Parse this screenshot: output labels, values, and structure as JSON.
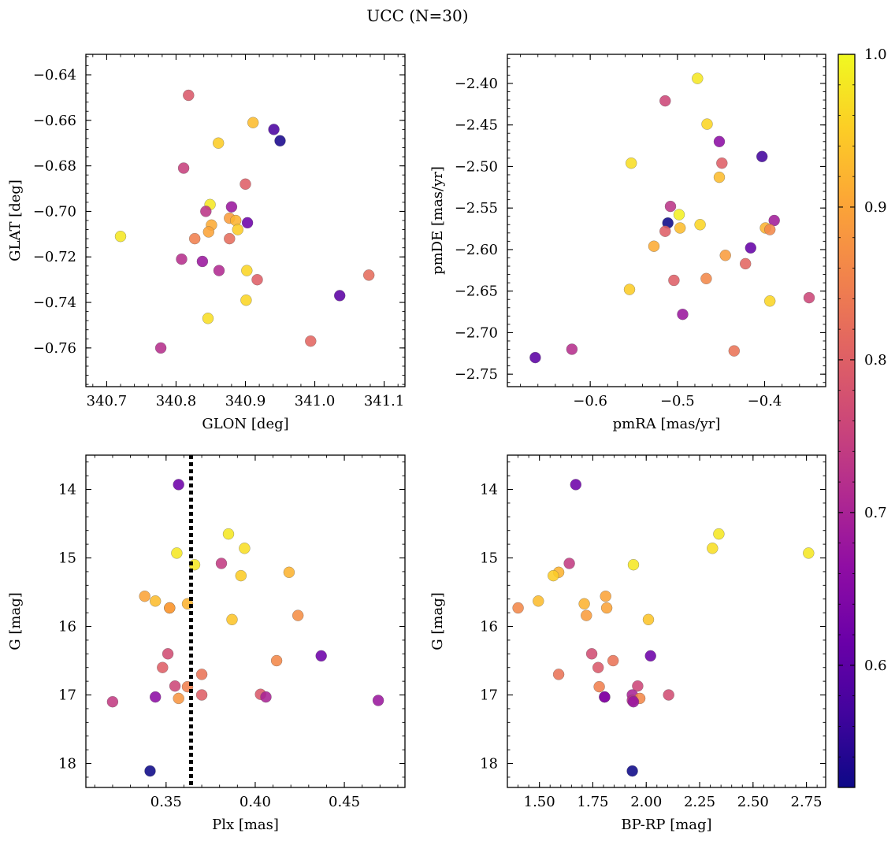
{
  "figure": {
    "title": "UCC (N=30)"
  },
  "colorbar": {
    "colormap": "plasma",
    "vmin": 0.52,
    "vmax": 1.0,
    "ticks": [
      1.0,
      0.9,
      0.8,
      0.7,
      0.6
    ],
    "tick_labels": [
      "1.0",
      "0.9",
      "0.8",
      "0.7",
      "0.6"
    ]
  },
  "chart_data": [
    {
      "type": "scatter",
      "title": "",
      "xlabel": "GLON [deg]",
      "ylabel": "GLAT [deg]",
      "xlim": [
        340.67,
        341.13
      ],
      "ylim": [
        -0.777,
        -0.631
      ],
      "y_inverted": false,
      "x_ticks": [
        340.7,
        340.8,
        340.9,
        341.0,
        341.1
      ],
      "x_tick_labels": [
        "340.7",
        "340.8",
        "340.9",
        "341.0",
        "341.1"
      ],
      "y_ticks": [
        -0.64,
        -0.66,
        -0.68,
        -0.7,
        -0.72,
        -0.74,
        -0.76
      ],
      "y_tick_labels": [
        "−0.64",
        "−0.66",
        "−0.68",
        "−0.70",
        "−0.72",
        "−0.74",
        "−0.76"
      ],
      "points": [
        {
          "x": 340.818,
          "y": -0.649,
          "c": 0.79
        },
        {
          "x": 340.911,
          "y": -0.661,
          "c": 0.93
        },
        {
          "x": 340.941,
          "y": -0.664,
          "c": 0.58
        },
        {
          "x": 340.95,
          "y": -0.669,
          "c": 0.53
        },
        {
          "x": 340.861,
          "y": -0.67,
          "c": 0.95
        },
        {
          "x": 340.811,
          "y": -0.681,
          "c": 0.75
        },
        {
          "x": 340.9,
          "y": -0.688,
          "c": 0.8
        },
        {
          "x": 340.849,
          "y": -0.697,
          "c": 0.98
        },
        {
          "x": 340.88,
          "y": -0.698,
          "c": 0.68
        },
        {
          "x": 340.843,
          "y": -0.7,
          "c": 0.73
        },
        {
          "x": 340.877,
          "y": -0.703,
          "c": 0.89
        },
        {
          "x": 340.886,
          "y": -0.704,
          "c": 0.92
        },
        {
          "x": 340.903,
          "y": -0.705,
          "c": 0.62
        },
        {
          "x": 340.851,
          "y": -0.706,
          "c": 0.91
        },
        {
          "x": 340.889,
          "y": -0.708,
          "c": 0.95
        },
        {
          "x": 340.847,
          "y": -0.709,
          "c": 0.9
        },
        {
          "x": 340.72,
          "y": -0.711,
          "c": 0.98
        },
        {
          "x": 340.827,
          "y": -0.712,
          "c": 0.85
        },
        {
          "x": 340.877,
          "y": -0.712,
          "c": 0.82
        },
        {
          "x": 340.808,
          "y": -0.721,
          "c": 0.72
        },
        {
          "x": 340.838,
          "y": -0.722,
          "c": 0.68
        },
        {
          "x": 340.862,
          "y": -0.726,
          "c": 0.71
        },
        {
          "x": 340.902,
          "y": -0.726,
          "c": 0.96
        },
        {
          "x": 340.917,
          "y": -0.73,
          "c": 0.8
        },
        {
          "x": 341.078,
          "y": -0.728,
          "c": 0.82
        },
        {
          "x": 341.036,
          "y": -0.737,
          "c": 0.6
        },
        {
          "x": 340.901,
          "y": -0.739,
          "c": 0.96
        },
        {
          "x": 340.846,
          "y": -0.747,
          "c": 0.97
        },
        {
          "x": 340.994,
          "y": -0.757,
          "c": 0.81
        },
        {
          "x": 340.778,
          "y": -0.76,
          "c": 0.72
        }
      ]
    },
    {
      "type": "scatter",
      "title": "",
      "xlabel": "pmRA [mas/yr]",
      "ylabel": "pmDE [mas/yr]",
      "xlim": [
        -0.695,
        -0.33
      ],
      "ylim": [
        -2.765,
        -2.365
      ],
      "y_inverted": false,
      "x_ticks": [
        -0.6,
        -0.5,
        -0.4
      ],
      "x_tick_labels": [
        "−0.6",
        "−0.5",
        "−0.4"
      ],
      "y_ticks": [
        -2.4,
        -2.45,
        -2.5,
        -2.55,
        -2.6,
        -2.65,
        -2.7,
        -2.75
      ],
      "y_tick_labels": [
        "−2.40",
        "−2.45",
        "−2.50",
        "−2.55",
        "−2.60",
        "−2.65",
        "−2.70",
        "−2.75"
      ],
      "points": [
        {
          "x": -0.477,
          "y": -2.394,
          "c": 0.98
        },
        {
          "x": -0.514,
          "y": -2.421,
          "c": 0.76
        },
        {
          "x": -0.466,
          "y": -2.449,
          "c": 0.96
        },
        {
          "x": -0.452,
          "y": -2.47,
          "c": 0.66
        },
        {
          "x": -0.403,
          "y": -2.488,
          "c": 0.57
        },
        {
          "x": -0.553,
          "y": -2.496,
          "c": 0.97
        },
        {
          "x": -0.449,
          "y": -2.496,
          "c": 0.8
        },
        {
          "x": -0.452,
          "y": -2.513,
          "c": 0.93
        },
        {
          "x": -0.508,
          "y": -2.548,
          "c": 0.73
        },
        {
          "x": -0.498,
          "y": -2.558,
          "c": 0.99
        },
        {
          "x": -0.389,
          "y": -2.565,
          "c": 0.69
        },
        {
          "x": -0.511,
          "y": -2.568,
          "c": 0.52
        },
        {
          "x": -0.474,
          "y": -2.57,
          "c": 0.96
        },
        {
          "x": -0.497,
          "y": -2.574,
          "c": 0.93
        },
        {
          "x": -0.399,
          "y": -2.574,
          "c": 0.92
        },
        {
          "x": -0.394,
          "y": -2.576,
          "c": 0.86
        },
        {
          "x": -0.514,
          "y": -2.578,
          "c": 0.8
        },
        {
          "x": -0.527,
          "y": -2.596,
          "c": 0.91
        },
        {
          "x": -0.416,
          "y": -2.598,
          "c": 0.61
        },
        {
          "x": -0.445,
          "y": -2.607,
          "c": 0.89
        },
        {
          "x": -0.422,
          "y": -2.617,
          "c": 0.81
        },
        {
          "x": -0.467,
          "y": -2.635,
          "c": 0.86
        },
        {
          "x": -0.504,
          "y": -2.637,
          "c": 0.8
        },
        {
          "x": -0.555,
          "y": -2.648,
          "c": 0.95
        },
        {
          "x": -0.349,
          "y": -2.658,
          "c": 0.76
        },
        {
          "x": -0.394,
          "y": -2.662,
          "c": 0.96
        },
        {
          "x": -0.494,
          "y": -2.678,
          "c": 0.68
        },
        {
          "x": -0.621,
          "y": -2.72,
          "c": 0.72
        },
        {
          "x": -0.435,
          "y": -2.722,
          "c": 0.83
        },
        {
          "x": -0.663,
          "y": -2.73,
          "c": 0.6
        }
      ]
    },
    {
      "type": "scatter",
      "title": "",
      "xlabel": "Plx [mas]",
      "ylabel": "G [mag]",
      "xlim": [
        0.305,
        0.484
      ],
      "ylim": [
        13.5,
        18.35
      ],
      "y_inverted": true,
      "x_ticks": [
        0.35,
        0.4,
        0.45
      ],
      "x_tick_labels": [
        "0.35",
        "0.40",
        "0.45"
      ],
      "y_ticks": [
        14,
        15,
        16,
        17,
        18
      ],
      "y_tick_labels": [
        "14",
        "15",
        "16",
        "17",
        "18"
      ],
      "vline": {
        "x": 0.364,
        "style": "dotted"
      },
      "points": [
        {
          "x": 0.357,
          "y": 13.93,
          "c": 0.62
        },
        {
          "x": 0.385,
          "y": 14.65,
          "c": 0.98
        },
        {
          "x": 0.394,
          "y": 14.86,
          "c": 0.97
        },
        {
          "x": 0.356,
          "y": 14.93,
          "c": 0.98
        },
        {
          "x": 0.366,
          "y": 15.1,
          "c": 0.98
        },
        {
          "x": 0.381,
          "y": 15.08,
          "c": 0.74
        },
        {
          "x": 0.392,
          "y": 15.26,
          "c": 0.95
        },
        {
          "x": 0.419,
          "y": 15.21,
          "c": 0.92
        },
        {
          "x": 0.338,
          "y": 15.56,
          "c": 0.9
        },
        {
          "x": 0.344,
          "y": 15.63,
          "c": 0.93
        },
        {
          "x": 0.352,
          "y": 15.73,
          "c": 0.9
        },
        {
          "x": 0.352,
          "y": 15.73,
          "c": 0.89
        },
        {
          "x": 0.362,
          "y": 15.67,
          "c": 0.92
        },
        {
          "x": 0.387,
          "y": 15.9,
          "c": 0.94
        },
        {
          "x": 0.424,
          "y": 15.84,
          "c": 0.87
        },
        {
          "x": 0.351,
          "y": 16.4,
          "c": 0.77
        },
        {
          "x": 0.348,
          "y": 16.6,
          "c": 0.8
        },
        {
          "x": 0.37,
          "y": 16.7,
          "c": 0.83
        },
        {
          "x": 0.412,
          "y": 16.5,
          "c": 0.86
        },
        {
          "x": 0.437,
          "y": 16.43,
          "c": 0.62
        },
        {
          "x": 0.355,
          "y": 16.87,
          "c": 0.76
        },
        {
          "x": 0.362,
          "y": 16.88,
          "c": 0.85
        },
        {
          "x": 0.37,
          "y": 17.0,
          "c": 0.8
        },
        {
          "x": 0.344,
          "y": 17.03,
          "c": 0.66
        },
        {
          "x": 0.357,
          "y": 17.05,
          "c": 0.88
        },
        {
          "x": 0.403,
          "y": 16.99,
          "c": 0.79
        },
        {
          "x": 0.406,
          "y": 17.03,
          "c": 0.7
        },
        {
          "x": 0.469,
          "y": 17.08,
          "c": 0.68
        },
        {
          "x": 0.32,
          "y": 17.1,
          "c": 0.74
        },
        {
          "x": 0.341,
          "y": 18.11,
          "c": 0.52
        }
      ]
    },
    {
      "type": "scatter",
      "title": "",
      "xlabel": "BP-RP [mag]",
      "ylabel": "G [mag]",
      "xlim": [
        1.35,
        2.84
      ],
      "ylim": [
        13.5,
        18.35
      ],
      "y_inverted": true,
      "x_ticks": [
        1.5,
        1.75,
        2.0,
        2.25,
        2.5,
        2.75
      ],
      "x_tick_labels": [
        "1.50",
        "1.75",
        "2.00",
        "2.25",
        "2.50",
        "2.75"
      ],
      "y_ticks": [
        14,
        15,
        16,
        17,
        18
      ],
      "y_tick_labels": [
        "14",
        "15",
        "16",
        "17",
        "18"
      ],
      "points": [
        {
          "x": 1.67,
          "y": 13.93,
          "c": 0.62
        },
        {
          "x": 2.34,
          "y": 14.65,
          "c": 0.98
        },
        {
          "x": 2.31,
          "y": 14.86,
          "c": 0.97
        },
        {
          "x": 2.76,
          "y": 14.93,
          "c": 0.98
        },
        {
          "x": 1.64,
          "y": 15.08,
          "c": 0.74
        },
        {
          "x": 1.94,
          "y": 15.1,
          "c": 0.98
        },
        {
          "x": 1.59,
          "y": 15.21,
          "c": 0.92
        },
        {
          "x": 1.565,
          "y": 15.26,
          "c": 0.95
        },
        {
          "x": 1.81,
          "y": 15.56,
          "c": 0.9
        },
        {
          "x": 1.495,
          "y": 15.63,
          "c": 0.93
        },
        {
          "x": 1.71,
          "y": 15.67,
          "c": 0.92
        },
        {
          "x": 1.815,
          "y": 15.73,
          "c": 0.9
        },
        {
          "x": 1.4,
          "y": 15.73,
          "c": 0.86
        },
        {
          "x": 1.72,
          "y": 15.84,
          "c": 0.89
        },
        {
          "x": 2.01,
          "y": 15.9,
          "c": 0.94
        },
        {
          "x": 1.745,
          "y": 16.4,
          "c": 0.77
        },
        {
          "x": 2.02,
          "y": 16.43,
          "c": 0.62
        },
        {
          "x": 1.845,
          "y": 16.5,
          "c": 0.83
        },
        {
          "x": 1.775,
          "y": 16.6,
          "c": 0.79
        },
        {
          "x": 1.59,
          "y": 16.7,
          "c": 0.83
        },
        {
          "x": 1.96,
          "y": 16.87,
          "c": 0.76
        },
        {
          "x": 1.78,
          "y": 16.88,
          "c": 0.85
        },
        {
          "x": 2.105,
          "y": 17.0,
          "c": 0.77
        },
        {
          "x": 1.935,
          "y": 17.0,
          "c": 0.7
        },
        {
          "x": 1.805,
          "y": 17.03,
          "c": 0.66
        },
        {
          "x": 1.805,
          "y": 17.03,
          "c": 0.65
        },
        {
          "x": 1.97,
          "y": 17.05,
          "c": 0.86
        },
        {
          "x": 1.935,
          "y": 17.08,
          "c": 0.72
        },
        {
          "x": 1.94,
          "y": 17.1,
          "c": 0.68
        },
        {
          "x": 1.935,
          "y": 18.11,
          "c": 0.52
        }
      ]
    }
  ]
}
